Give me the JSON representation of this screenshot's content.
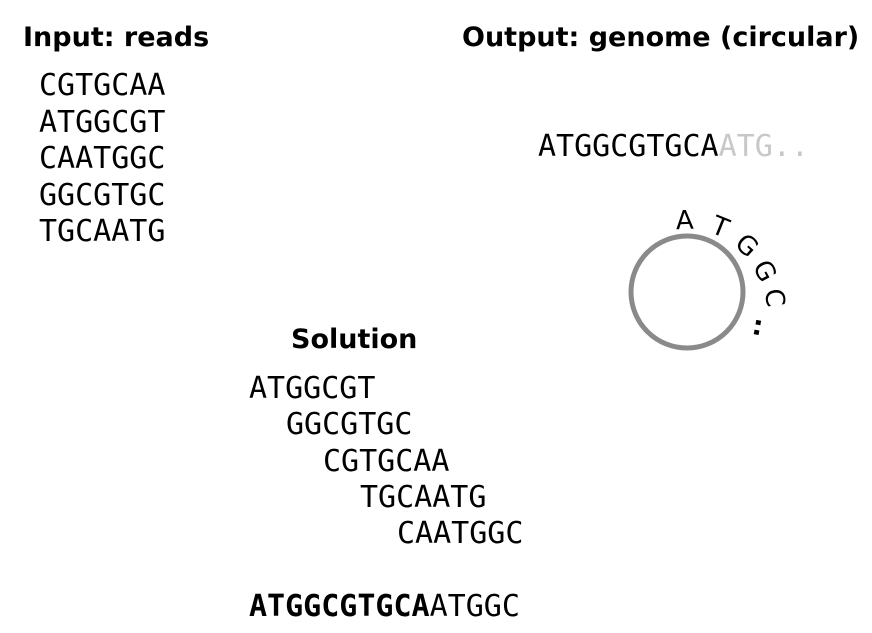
{
  "input": {
    "title": "Input: reads",
    "reads": [
      "CGTGCAA",
      "ATGGCGT",
      "CAATGGC",
      "GGCGTGC",
      "TGCAATG"
    ]
  },
  "output": {
    "title": "Output: genome (circular)",
    "genome_main": "ATGGCGTGCA",
    "genome_wrap": "ATG..",
    "circle_letters": [
      "A",
      "T",
      "G",
      "G",
      "C",
      ".."
    ],
    "circle_color": "#8a8a8a",
    "faded_color": "#c8c8c8"
  },
  "solution": {
    "title": "Solution",
    "reads": [
      "ATGGCGT",
      "GGCGTGC",
      "CGTGCAA",
      "TGCAATG",
      "CAATGGC"
    ],
    "assembled_bold": "ATGGCGTGCA",
    "assembled_rest": "ATGGC"
  }
}
